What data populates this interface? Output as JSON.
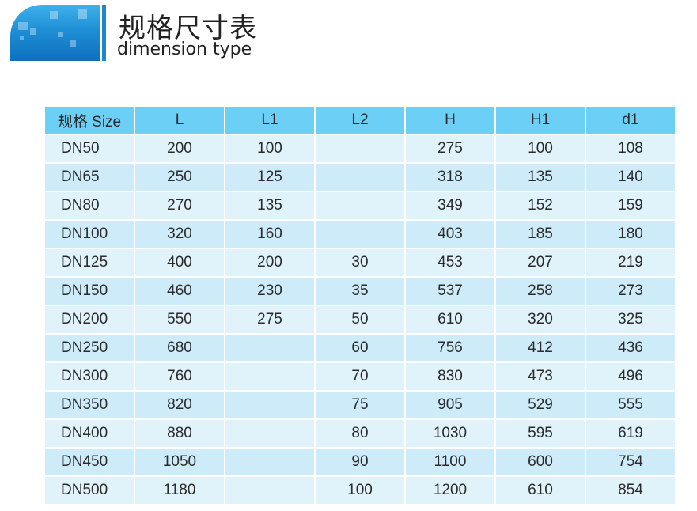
{
  "header": {
    "title_cn": "规格尺寸表",
    "title_en": "dimension type"
  },
  "colors": {
    "header_bg": "#6ccff5",
    "row_light": "#e0f3fb",
    "row_dark": "#cdebf9",
    "banner": "#1e8fd6"
  },
  "table": {
    "columns": [
      "规格 Size",
      "L",
      "L1",
      "L2",
      "H",
      "H1",
      "d1"
    ],
    "rows": [
      [
        "DN50",
        "200",
        "100",
        "",
        "275",
        "100",
        "108"
      ],
      [
        "DN65",
        "250",
        "125",
        "",
        "318",
        "135",
        "140"
      ],
      [
        "DN80",
        "270",
        "135",
        "",
        "349",
        "152",
        "159"
      ],
      [
        "DN100",
        "320",
        "160",
        "",
        "403",
        "185",
        "180"
      ],
      [
        "DN125",
        "400",
        "200",
        "30",
        "453",
        "207",
        "219"
      ],
      [
        "DN150",
        "460",
        "230",
        "35",
        "537",
        "258",
        "273"
      ],
      [
        "DN200",
        "550",
        "275",
        "50",
        "610",
        "320",
        "325"
      ],
      [
        "DN250",
        "680",
        "",
        "60",
        "756",
        "412",
        "436"
      ],
      [
        "DN300",
        "760",
        "",
        "70",
        "830",
        "473",
        "496"
      ],
      [
        "DN350",
        "820",
        "",
        "75",
        "905",
        "529",
        "555"
      ],
      [
        "DN400",
        "880",
        "",
        "80",
        "1030",
        "595",
        "619"
      ],
      [
        "DN450",
        "1050",
        "",
        "90",
        "1100",
        "600",
        "754"
      ],
      [
        "DN500",
        "1180",
        "",
        "100",
        "1200",
        "610",
        "854"
      ]
    ]
  }
}
